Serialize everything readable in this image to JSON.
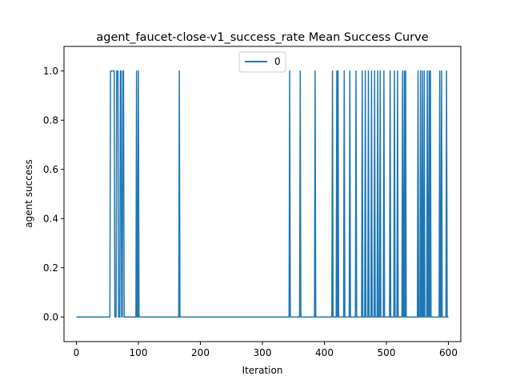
{
  "chart_data": {
    "type": "line",
    "title": "agent_faucet-close-v1_success_rate Mean Success Curve",
    "xlabel": "Iteration",
    "ylabel": "agent success",
    "xlim": [
      -20,
      620
    ],
    "ylim": [
      -0.1,
      1.1
    ],
    "xticks": [
      0,
      100,
      200,
      300,
      400,
      500,
      600
    ],
    "yticks": [
      0.0,
      0.2,
      0.4,
      0.6,
      0.8,
      1.0
    ],
    "xtick_labels": [
      "0",
      "100",
      "200",
      "300",
      "400",
      "500",
      "600"
    ],
    "ytick_labels": [
      "0.0",
      "0.2",
      "0.4",
      "0.6",
      "0.8",
      "1.0"
    ],
    "grid": false,
    "legend_position": "top-center",
    "series": [
      {
        "name": "0",
        "color": "#1f77b4",
        "x_end": 600,
        "success_intervals": [
          [
            55,
            62
          ],
          [
            65,
            68
          ],
          [
            71,
            73
          ],
          [
            75,
            77
          ],
          [
            97,
            98
          ],
          [
            100,
            101
          ],
          [
            166,
            167
          ],
          [
            344,
            345
          ],
          [
            361,
            362
          ],
          [
            385,
            386
          ],
          [
            413,
            414
          ],
          [
            420,
            421
          ],
          [
            422,
            423
          ],
          [
            432,
            433
          ],
          [
            441,
            442
          ],
          [
            451,
            452
          ],
          [
            461,
            462
          ],
          [
            466,
            467
          ],
          [
            471,
            472
          ],
          [
            476,
            477
          ],
          [
            481,
            482
          ],
          [
            486,
            487
          ],
          [
            490,
            491
          ],
          [
            496,
            497
          ],
          [
            506,
            507
          ],
          [
            513,
            514
          ],
          [
            518,
            519
          ],
          [
            526,
            527
          ],
          [
            529,
            530
          ],
          [
            531,
            532
          ],
          [
            551,
            552
          ],
          [
            555,
            556
          ],
          [
            558,
            559
          ],
          [
            561,
            562
          ],
          [
            566,
            567
          ],
          [
            569,
            570
          ],
          [
            571,
            572
          ],
          [
            586,
            587
          ],
          [
            589,
            590
          ],
          [
            597,
            598
          ]
        ]
      }
    ]
  }
}
